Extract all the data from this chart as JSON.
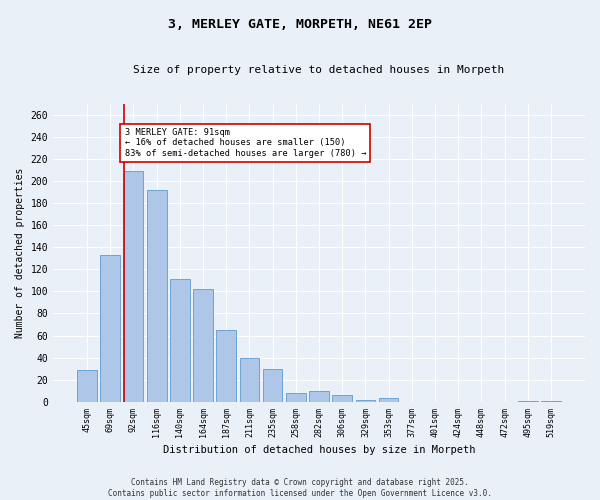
{
  "title": "3, MERLEY GATE, MORPETH, NE61 2EP",
  "subtitle": "Size of property relative to detached houses in Morpeth",
  "xlabel": "Distribution of detached houses by size in Morpeth",
  "ylabel": "Number of detached properties",
  "categories": [
    "45sqm",
    "69sqm",
    "92sqm",
    "116sqm",
    "140sqm",
    "164sqm",
    "187sqm",
    "211sqm",
    "235sqm",
    "258sqm",
    "282sqm",
    "306sqm",
    "329sqm",
    "353sqm",
    "377sqm",
    "401sqm",
    "424sqm",
    "448sqm",
    "472sqm",
    "495sqm",
    "519sqm"
  ],
  "values": [
    29,
    133,
    209,
    192,
    111,
    102,
    65,
    40,
    30,
    8,
    10,
    6,
    2,
    3,
    0,
    0,
    0,
    0,
    0,
    1,
    1
  ],
  "bar_color": "#aec6e8",
  "bar_edge_color": "#5b9bd5",
  "vline_color": "#cc0000",
  "vline_pos": 1.575,
  "annotation_text": "3 MERLEY GATE: 91sqm\n← 16% of detached houses are smaller (150)\n83% of semi-detached houses are larger (780) →",
  "annotation_box_color": "#ffffff",
  "annotation_box_edge": "#cc0000",
  "ylim": [
    0,
    270
  ],
  "yticks": [
    0,
    20,
    40,
    60,
    80,
    100,
    120,
    140,
    160,
    180,
    200,
    220,
    240,
    260
  ],
  "background_color": "#eaf0f8",
  "grid_color": "#ffffff",
  "footer": "Contains HM Land Registry data © Crown copyright and database right 2025.\nContains public sector information licensed under the Open Government Licence v3.0."
}
